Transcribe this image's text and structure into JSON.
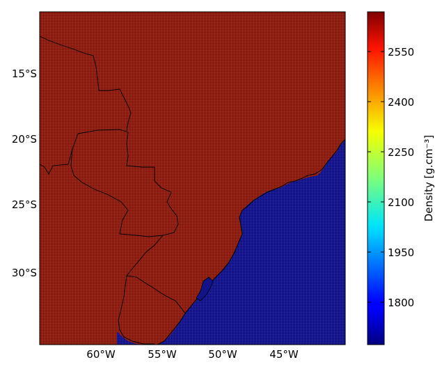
{
  "map": {
    "lat_labels": [
      "15°S",
      "20°S",
      "25°S",
      "30°S"
    ],
    "lon_labels": [
      "60°W",
      "55°W",
      "50°W",
      "45°W"
    ],
    "land_color": "#8b1a0e",
    "ocean_color": "#12128a",
    "coastline_color": "#000000",
    "grid_line_color": "#c86b5f"
  },
  "colorbar": {
    "label": "Density [g.cm⁻³]",
    "colormap": "jet",
    "ticks": [
      "2550",
      "2400",
      "2250",
      "2100",
      "1950",
      "1800"
    ]
  }
}
